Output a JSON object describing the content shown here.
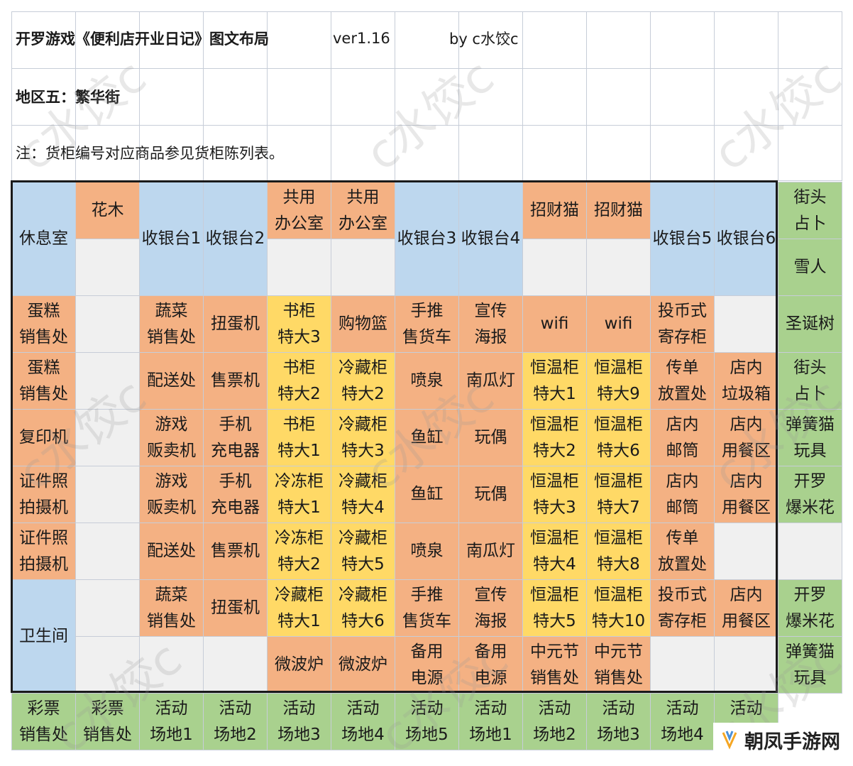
{
  "header": {
    "title": "开罗游戏《便利店开业日记》图文布局",
    "version": "ver1.16",
    "author": "by   c水饺c",
    "region": "地区五：繁华街",
    "note": "注：货柜编号对应商品参见货柜陈列表。"
  },
  "watermark": "c水饺c",
  "brand": {
    "name": "朝凤手游网",
    "icon": "brand-logo-icon"
  },
  "colors": {
    "blue": "#bdd7ee",
    "orange": "#f4b183",
    "yellow": "#ffd966",
    "green": "#a9d18e",
    "gray": "#f0f0f0",
    "border": "#c7cdd8"
  },
  "grid": {
    "cells": [
      {
        "r": 0,
        "c": 0,
        "rs": 2,
        "text": "休息室",
        "color": "blue"
      },
      {
        "r": 0,
        "c": 1,
        "text": "花木",
        "color": "orange"
      },
      {
        "r": 1,
        "c": 1,
        "text": "",
        "color": "gray"
      },
      {
        "r": 0,
        "c": 2,
        "rs": 2,
        "text": "收银台1",
        "color": "blue"
      },
      {
        "r": 0,
        "c": 3,
        "rs": 2,
        "text": "收银台2",
        "color": "blue"
      },
      {
        "r": 0,
        "c": 4,
        "text": "共用\n办公室",
        "color": "orange"
      },
      {
        "r": 1,
        "c": 4,
        "text": "",
        "color": "gray"
      },
      {
        "r": 0,
        "c": 5,
        "text": "共用\n办公室",
        "color": "orange"
      },
      {
        "r": 1,
        "c": 5,
        "text": "",
        "color": "gray"
      },
      {
        "r": 0,
        "c": 6,
        "rs": 2,
        "text": "收银台3",
        "color": "blue"
      },
      {
        "r": 0,
        "c": 7,
        "rs": 2,
        "text": "收银台4",
        "color": "blue"
      },
      {
        "r": 0,
        "c": 8,
        "text": "招财猫",
        "color": "orange"
      },
      {
        "r": 1,
        "c": 8,
        "text": "",
        "color": "gray"
      },
      {
        "r": 0,
        "c": 9,
        "text": "招财猫",
        "color": "orange"
      },
      {
        "r": 1,
        "c": 9,
        "text": "",
        "color": "gray"
      },
      {
        "r": 0,
        "c": 10,
        "rs": 2,
        "text": "收银台5",
        "color": "blue"
      },
      {
        "r": 0,
        "c": 11,
        "rs": 2,
        "text": "收银台6",
        "color": "blue"
      },
      {
        "r": 0,
        "c": 12,
        "text": "街头\n占卜",
        "color": "green"
      },
      {
        "r": 1,
        "c": 12,
        "text": "雪人",
        "color": "green"
      },
      {
        "r": 2,
        "c": 0,
        "text": "蛋糕\n销售处",
        "color": "orange"
      },
      {
        "r": 2,
        "c": 1,
        "text": "",
        "color": "gray"
      },
      {
        "r": 2,
        "c": 2,
        "text": "蔬菜\n销售处",
        "color": "orange"
      },
      {
        "r": 2,
        "c": 3,
        "text": "扭蛋机",
        "color": "orange"
      },
      {
        "r": 2,
        "c": 4,
        "text": "书柜\n特大3",
        "color": "yellow"
      },
      {
        "r": 2,
        "c": 5,
        "text": "购物篮",
        "color": "orange"
      },
      {
        "r": 2,
        "c": 6,
        "text": "手推\n售货车",
        "color": "orange"
      },
      {
        "r": 2,
        "c": 7,
        "text": "宣传\n海报",
        "color": "orange"
      },
      {
        "r": 2,
        "c": 8,
        "text": "wifi",
        "color": "orange"
      },
      {
        "r": 2,
        "c": 9,
        "text": "wifi",
        "color": "orange"
      },
      {
        "r": 2,
        "c": 10,
        "text": "投币式\n寄存柜",
        "color": "orange"
      },
      {
        "r": 2,
        "c": 11,
        "text": "",
        "color": "gray"
      },
      {
        "r": 2,
        "c": 12,
        "text": "圣诞树",
        "color": "green"
      },
      {
        "r": 3,
        "c": 0,
        "text": "蛋糕\n销售处",
        "color": "orange"
      },
      {
        "r": 3,
        "c": 1,
        "text": "",
        "color": "gray"
      },
      {
        "r": 3,
        "c": 2,
        "text": "配送处",
        "color": "orange"
      },
      {
        "r": 3,
        "c": 3,
        "text": "售票机",
        "color": "orange"
      },
      {
        "r": 3,
        "c": 4,
        "text": "书柜\n特大2",
        "color": "yellow"
      },
      {
        "r": 3,
        "c": 5,
        "text": "冷藏柜\n特大2",
        "color": "yellow"
      },
      {
        "r": 3,
        "c": 6,
        "text": "喷泉",
        "color": "orange"
      },
      {
        "r": 3,
        "c": 7,
        "text": "南瓜灯",
        "color": "orange"
      },
      {
        "r": 3,
        "c": 8,
        "text": "恒温柜\n特大1",
        "color": "yellow"
      },
      {
        "r": 3,
        "c": 9,
        "text": "恒温柜\n特大9",
        "color": "yellow"
      },
      {
        "r": 3,
        "c": 10,
        "text": "传单\n放置处",
        "color": "orange"
      },
      {
        "r": 3,
        "c": 11,
        "text": "店内\n垃圾箱",
        "color": "orange"
      },
      {
        "r": 3,
        "c": 12,
        "text": "街头\n占卜",
        "color": "green"
      },
      {
        "r": 4,
        "c": 0,
        "text": "复印机",
        "color": "orange"
      },
      {
        "r": 4,
        "c": 1,
        "text": "",
        "color": "gray"
      },
      {
        "r": 4,
        "c": 2,
        "text": "游戏\n贩卖机",
        "color": "orange"
      },
      {
        "r": 4,
        "c": 3,
        "text": "手机\n充电器",
        "color": "orange"
      },
      {
        "r": 4,
        "c": 4,
        "text": "书柜\n特大1",
        "color": "yellow"
      },
      {
        "r": 4,
        "c": 5,
        "text": "冷藏柜\n特大3",
        "color": "yellow"
      },
      {
        "r": 4,
        "c": 6,
        "text": "鱼缸",
        "color": "orange"
      },
      {
        "r": 4,
        "c": 7,
        "text": "玩偶",
        "color": "orange"
      },
      {
        "r": 4,
        "c": 8,
        "text": "恒温柜\n特大2",
        "color": "yellow"
      },
      {
        "r": 4,
        "c": 9,
        "text": "恒温柜\n特大6",
        "color": "yellow"
      },
      {
        "r": 4,
        "c": 10,
        "text": "店内\n邮筒",
        "color": "orange"
      },
      {
        "r": 4,
        "c": 11,
        "text": "店内\n用餐区",
        "color": "orange"
      },
      {
        "r": 4,
        "c": 12,
        "text": "弹簧猫\n玩具",
        "color": "green"
      },
      {
        "r": 5,
        "c": 0,
        "text": "证件照\n拍摄机",
        "color": "orange"
      },
      {
        "r": 5,
        "c": 1,
        "text": "",
        "color": "gray"
      },
      {
        "r": 5,
        "c": 2,
        "text": "游戏\n贩卖机",
        "color": "orange"
      },
      {
        "r": 5,
        "c": 3,
        "text": "手机\n充电器",
        "color": "orange"
      },
      {
        "r": 5,
        "c": 4,
        "text": "冷冻柜\n特大1",
        "color": "yellow"
      },
      {
        "r": 5,
        "c": 5,
        "text": "冷藏柜\n特大4",
        "color": "yellow"
      },
      {
        "r": 5,
        "c": 6,
        "text": "鱼缸",
        "color": "orange"
      },
      {
        "r": 5,
        "c": 7,
        "text": "玩偶",
        "color": "orange"
      },
      {
        "r": 5,
        "c": 8,
        "text": "恒温柜\n特大3",
        "color": "yellow"
      },
      {
        "r": 5,
        "c": 9,
        "text": "恒温柜\n特大7",
        "color": "yellow"
      },
      {
        "r": 5,
        "c": 10,
        "text": "店内\n邮筒",
        "color": "orange"
      },
      {
        "r": 5,
        "c": 11,
        "text": "店内\n用餐区",
        "color": "orange"
      },
      {
        "r": 5,
        "c": 12,
        "text": "开罗\n爆米花",
        "color": "green"
      },
      {
        "r": 6,
        "c": 0,
        "text": "证件照\n拍摄机",
        "color": "orange"
      },
      {
        "r": 6,
        "c": 1,
        "text": "",
        "color": "gray"
      },
      {
        "r": 6,
        "c": 2,
        "text": "配送处",
        "color": "orange"
      },
      {
        "r": 6,
        "c": 3,
        "text": "售票机",
        "color": "orange"
      },
      {
        "r": 6,
        "c": 4,
        "text": "冷冻柜\n特大2",
        "color": "yellow"
      },
      {
        "r": 6,
        "c": 5,
        "text": "冷藏柜\n特大5",
        "color": "yellow"
      },
      {
        "r": 6,
        "c": 6,
        "text": "喷泉",
        "color": "orange"
      },
      {
        "r": 6,
        "c": 7,
        "text": "南瓜灯",
        "color": "orange"
      },
      {
        "r": 6,
        "c": 8,
        "text": "恒温柜\n特大4",
        "color": "yellow"
      },
      {
        "r": 6,
        "c": 9,
        "text": "恒温柜\n特大8",
        "color": "yellow"
      },
      {
        "r": 6,
        "c": 10,
        "text": "传单\n放置处",
        "color": "orange"
      },
      {
        "r": 6,
        "c": 11,
        "text": "",
        "color": "gray"
      },
      {
        "r": 6,
        "c": 12,
        "text": "",
        "color": "gray"
      },
      {
        "r": 7,
        "c": 0,
        "rs": 2,
        "text": "卫生间",
        "color": "blue"
      },
      {
        "r": 7,
        "c": 1,
        "text": "",
        "color": "gray"
      },
      {
        "r": 7,
        "c": 2,
        "text": "蔬菜\n销售处",
        "color": "orange"
      },
      {
        "r": 7,
        "c": 3,
        "text": "扭蛋机",
        "color": "orange"
      },
      {
        "r": 7,
        "c": 4,
        "text": "冷藏柜\n特大1",
        "color": "yellow"
      },
      {
        "r": 7,
        "c": 5,
        "text": "冷藏柜\n特大6",
        "color": "yellow"
      },
      {
        "r": 7,
        "c": 6,
        "text": "手推\n售货车",
        "color": "orange"
      },
      {
        "r": 7,
        "c": 7,
        "text": "宣传\n海报",
        "color": "orange"
      },
      {
        "r": 7,
        "c": 8,
        "text": "恒温柜\n特大5",
        "color": "yellow"
      },
      {
        "r": 7,
        "c": 9,
        "text": "恒温柜\n特大10",
        "color": "yellow"
      },
      {
        "r": 7,
        "c": 10,
        "text": "投币式\n寄存柜",
        "color": "orange"
      },
      {
        "r": 7,
        "c": 11,
        "text": "店内\n用餐区",
        "color": "orange"
      },
      {
        "r": 7,
        "c": 12,
        "text": "开罗\n爆米花",
        "color": "green"
      },
      {
        "r": 8,
        "c": 1,
        "text": "",
        "color": "gray"
      },
      {
        "r": 8,
        "c": 2,
        "text": "",
        "color": "gray"
      },
      {
        "r": 8,
        "c": 3,
        "text": "",
        "color": "gray"
      },
      {
        "r": 8,
        "c": 4,
        "text": "微波炉",
        "color": "orange"
      },
      {
        "r": 8,
        "c": 5,
        "text": "微波炉",
        "color": "orange"
      },
      {
        "r": 8,
        "c": 6,
        "text": "备用\n电源",
        "color": "orange"
      },
      {
        "r": 8,
        "c": 7,
        "text": "备用\n电源",
        "color": "orange"
      },
      {
        "r": 8,
        "c": 8,
        "text": "中元节\n销售处",
        "color": "orange"
      },
      {
        "r": 8,
        "c": 9,
        "text": "中元节\n销售处",
        "color": "orange"
      },
      {
        "r": 8,
        "c": 10,
        "text": "",
        "color": "gray"
      },
      {
        "r": 8,
        "c": 11,
        "text": "",
        "color": "gray"
      },
      {
        "r": 8,
        "c": 12,
        "text": "弹簧猫\n玩具",
        "color": "green"
      },
      {
        "r": 9,
        "c": 0,
        "text": "彩票\n销售处",
        "color": "green"
      },
      {
        "r": 9,
        "c": 1,
        "text": "彩票\n销售处",
        "color": "green"
      },
      {
        "r": 9,
        "c": 2,
        "text": "活动\n场地1",
        "color": "green"
      },
      {
        "r": 9,
        "c": 3,
        "text": "活动\n场地2",
        "color": "green"
      },
      {
        "r": 9,
        "c": 4,
        "text": "活动\n场地3",
        "color": "green"
      },
      {
        "r": 9,
        "c": 5,
        "text": "活动\n场地4",
        "color": "green"
      },
      {
        "r": 9,
        "c": 6,
        "text": "活动\n场地5",
        "color": "green"
      },
      {
        "r": 9,
        "c": 7,
        "text": "活动\n场地1",
        "color": "green"
      },
      {
        "r": 9,
        "c": 8,
        "text": "活动\n场地2",
        "color": "green"
      },
      {
        "r": 9,
        "c": 9,
        "text": "活动\n场地3",
        "color": "green"
      },
      {
        "r": 9,
        "c": 10,
        "text": "活动\n场地4",
        "color": "green"
      },
      {
        "r": 9,
        "c": 11,
        "text": "活动\n场地5",
        "color": "green"
      }
    ]
  }
}
